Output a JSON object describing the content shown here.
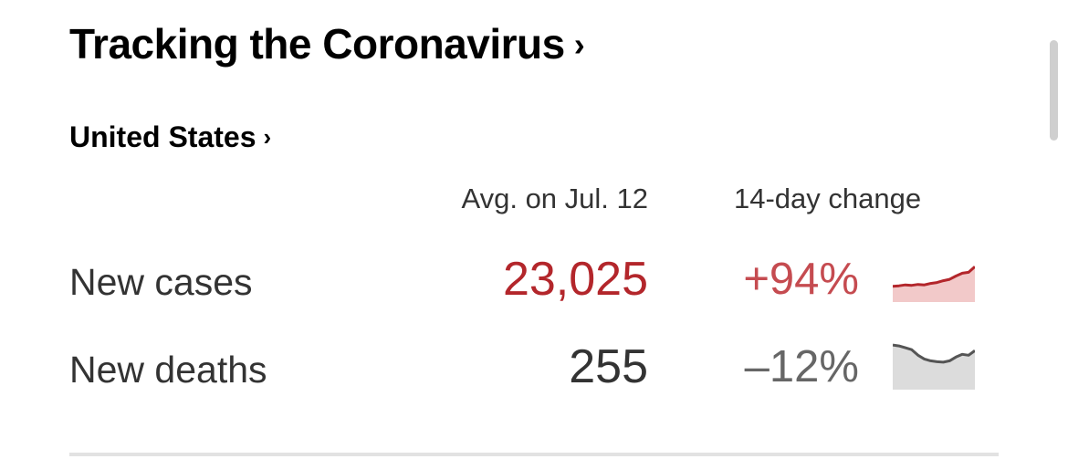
{
  "header": {
    "title": "Tracking the Coronavirus",
    "title_chevron": "›"
  },
  "region": {
    "label": "United States",
    "chevron": "›"
  },
  "columns": {
    "average": "Avg. on Jul. 12",
    "change": "14-day change"
  },
  "rows": [
    {
      "label": "New cases",
      "value": "23,025",
      "change": "+94%",
      "trend": [
        0.3,
        0.31,
        0.33,
        0.32,
        0.34,
        0.33,
        0.36,
        0.38,
        0.42,
        0.45,
        0.52,
        0.58,
        0.6,
        0.72
      ],
      "color": "#b3262b",
      "fill": "#f2c9c9"
    },
    {
      "label": "New deaths",
      "value": "255",
      "change": "–12%",
      "trend": [
        0.92,
        0.9,
        0.86,
        0.82,
        0.7,
        0.62,
        0.58,
        0.56,
        0.55,
        0.58,
        0.66,
        0.72,
        0.7,
        0.8
      ],
      "color": "#555555",
      "fill": "#dcdcdc"
    }
  ],
  "colors": {
    "cases_accent": "#b3262b",
    "cases_change": "#c54b50",
    "deaths_value": "#333333",
    "deaths_change": "#666666",
    "divider": "#e2e2e2"
  }
}
